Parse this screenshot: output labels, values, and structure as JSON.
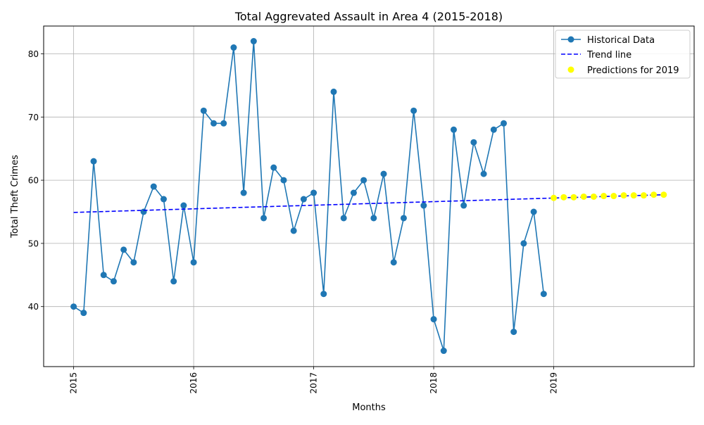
{
  "chart_data": {
    "type": "line",
    "title": "Total Aggrevated Assault in Area 4 (2015-2018)",
    "xlabel": "Months",
    "ylabel": "Total Theft Crimes",
    "xlim": [
      2014.75,
      2020.17
    ],
    "ylim": [
      30.5,
      84.4
    ],
    "grid": true,
    "legend_position": "top-right",
    "x_ticks": [
      {
        "value": 2015,
        "label": "2015"
      },
      {
        "value": 2016,
        "label": "2016"
      },
      {
        "value": 2017,
        "label": "2017"
      },
      {
        "value": 2018,
        "label": "2018"
      },
      {
        "value": 2019,
        "label": "2019"
      }
    ],
    "y_ticks": [
      {
        "value": 40,
        "label": "40"
      },
      {
        "value": 50,
        "label": "50"
      },
      {
        "value": 60,
        "label": "60"
      },
      {
        "value": 70,
        "label": "70"
      },
      {
        "value": 80,
        "label": "80"
      }
    ],
    "series": [
      {
        "name": "Historical Data",
        "kind": "line-markers",
        "color": "#1f77b4",
        "x_start": "2015-01",
        "values": [
          40,
          39,
          63,
          45,
          44,
          49,
          47,
          55,
          59,
          57,
          44,
          56,
          47,
          71,
          69,
          69,
          81,
          58,
          82,
          54,
          62,
          60,
          52,
          57,
          58,
          42,
          74,
          54,
          58,
          60,
          54,
          61,
          47,
          54,
          71,
          56,
          38,
          33,
          68,
          56,
          66,
          61,
          68,
          69,
          36,
          50,
          55,
          42
        ]
      },
      {
        "name": "Trend line",
        "kind": "dashed-line",
        "color": "#0000ff",
        "x": [
          "2015-01",
          "2019-12"
        ],
        "y": [
          54.9,
          57.7
        ]
      },
      {
        "name": "Predictions for 2019",
        "kind": "scatter",
        "color": "#ffff00",
        "x_start": "2019-01",
        "values": [
          57.2,
          57.3,
          57.3,
          57.4,
          57.4,
          57.5,
          57.5,
          57.6,
          57.6,
          57.6,
          57.7,
          57.7
        ]
      }
    ]
  }
}
